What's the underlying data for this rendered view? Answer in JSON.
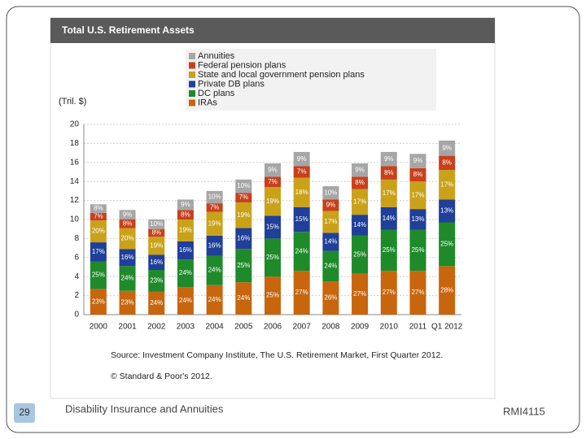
{
  "slide": {
    "page_number": "29",
    "footer_title": "Disability Insurance and Annuities",
    "course": "RMI4115"
  },
  "chart_data": {
    "type": "bar",
    "stacked": true,
    "title": "Total U.S. Retirement Assets",
    "ylabel": "(Tril. $)",
    "source": "Source: Investment Company Institute, The U.S. Retirement Market, First Quarter 2012.",
    "copyright": "© Standard & Poor's 2012.",
    "categories": [
      "2000",
      "2001",
      "2002",
      "2003",
      "2004",
      "2005",
      "2006",
      "2007",
      "2008",
      "2009",
      "2010",
      "2011",
      "Q1 2012"
    ],
    "series": [
      {
        "name": "Annuities",
        "color": "#a6a6a6",
        "values": [
          0.9,
          1.0,
          1.0,
          1.1,
          1.3,
          1.4,
          1.4,
          1.5,
          1.4,
          1.4,
          1.5,
          1.5,
          1.6
        ],
        "share_labels": [
          "8%",
          "9%",
          "10%",
          "9%",
          "10%",
          "10%",
          "9%",
          "9%",
          "10%",
          "9%",
          "9%",
          "9%",
          "9%"
        ]
      },
      {
        "name": "Federal pension plans",
        "color": "#c8401c",
        "values": [
          0.8,
          0.9,
          0.8,
          1.0,
          0.9,
          1.0,
          1.1,
          1.2,
          1.2,
          1.3,
          1.4,
          1.4,
          1.5
        ],
        "share_labels": [
          "7%",
          "8%",
          "8%",
          "8%",
          "7%",
          "7%",
          "7%",
          "7%",
          "9%",
          "8%",
          "8%",
          "8%",
          "8%"
        ]
      },
      {
        "name": "State and local government pension plans",
        "color": "#c9a21a",
        "values": [
          2.3,
          2.2,
          1.9,
          2.3,
          2.5,
          2.7,
          3.0,
          3.1,
          2.3,
          2.7,
          2.9,
          2.9,
          3.1
        ],
        "share_labels": [
          "20%",
          "20%",
          "19%",
          "19%",
          "19%",
          "19%",
          "19%",
          "18%",
          "17%",
          "17%",
          "17%",
          "17%",
          "17%"
        ]
      },
      {
        "name": "Private DB plans",
        "color": "#1f3f99",
        "values": [
          2.0,
          1.8,
          1.6,
          1.9,
          2.1,
          2.2,
          2.4,
          2.6,
          1.9,
          2.2,
          2.4,
          2.2,
          2.4
        ],
        "share_labels": [
          "17%",
          "16%",
          "16%",
          "16%",
          "16%",
          "16%",
          "15%",
          "15%",
          "14%",
          "14%",
          "14%",
          "13%",
          "13%"
        ]
      },
      {
        "name": "DC plans",
        "color": "#1f8a2a",
        "values": [
          2.9,
          2.6,
          2.3,
          2.9,
          3.1,
          3.5,
          4.0,
          4.1,
          3.2,
          4.0,
          4.3,
          4.3,
          4.6
        ],
        "share_labels": [
          "25%",
          "24%",
          "23%",
          "24%",
          "24%",
          "25%",
          "25%",
          "24%",
          "24%",
          "25%",
          "25%",
          "25%",
          "25%"
        ]
      },
      {
        "name": "IRAs",
        "color": "#c8660e",
        "values": [
          2.7,
          2.5,
          2.4,
          2.9,
          3.1,
          3.4,
          4.0,
          4.6,
          3.5,
          4.3,
          4.6,
          4.6,
          5.1
        ],
        "share_labels": [
          "23%",
          "23%",
          "24%",
          "24%",
          "24%",
          "24%",
          "25%",
          "27%",
          "26%",
          "27%",
          "27%",
          "27%",
          "28%"
        ]
      }
    ],
    "ylim": [
      0,
      20
    ],
    "yticks": [
      0,
      2,
      4,
      6,
      8,
      10,
      12,
      14,
      16,
      18,
      20
    ],
    "grid": true
  }
}
